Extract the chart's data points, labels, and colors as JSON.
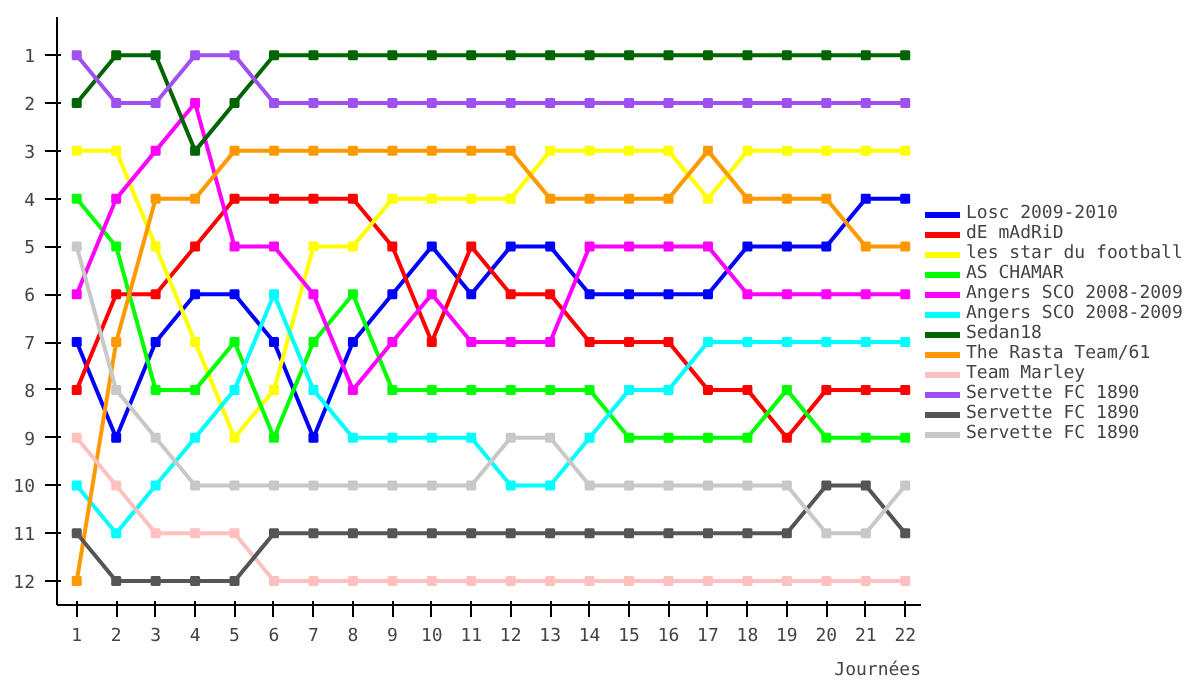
{
  "chart_data": {
    "type": "line",
    "xlabel": "Journées",
    "x": [
      1,
      2,
      3,
      4,
      5,
      6,
      7,
      8,
      9,
      10,
      11,
      12,
      13,
      14,
      15,
      16,
      17,
      18,
      19,
      20,
      21,
      22
    ],
    "xlim": [
      0.5,
      22.4
    ],
    "xticks": [
      1,
      2,
      3,
      4,
      5,
      6,
      7,
      8,
      9,
      10,
      11,
      12,
      13,
      14,
      15,
      16,
      17,
      18,
      19,
      20,
      21,
      22
    ],
    "ylim": [
      12.5,
      0.2
    ],
    "yticks": [
      1,
      2,
      3,
      4,
      5,
      6,
      7,
      8,
      9,
      10,
      11,
      12
    ],
    "grid": false,
    "legend": "right",
    "marker": "square",
    "line_style": "solid",
    "series": [
      {
        "name": "Losc 2009-2010",
        "color": "#0000ff",
        "values": [
          7,
          9,
          7,
          6,
          6,
          7,
          9,
          7,
          6,
          5,
          6,
          5,
          5,
          6,
          6,
          6,
          6,
          5,
          5,
          5,
          4,
          4
        ]
      },
      {
        "name": "dE mAdRiD",
        "color": "#ff0000",
        "values": [
          8,
          6,
          6,
          5,
          4,
          4,
          4,
          4,
          5,
          7,
          5,
          6,
          6,
          7,
          7,
          7,
          8,
          8,
          9,
          8,
          8,
          8
        ]
      },
      {
        "name": "les star du football",
        "color": "#ffff00",
        "values": [
          3,
          3,
          5,
          7,
          9,
          8,
          5,
          5,
          4,
          4,
          4,
          4,
          3,
          3,
          3,
          3,
          4,
          3,
          3,
          3,
          3,
          3
        ]
      },
      {
        "name": "AS CHAMAR",
        "color": "#00ff00",
        "values": [
          4,
          5,
          8,
          8,
          7,
          9,
          7,
          6,
          8,
          8,
          8,
          8,
          8,
          8,
          9,
          9,
          9,
          9,
          8,
          9,
          9,
          9
        ]
      },
      {
        "name": "Angers SCO 2008-2009",
        "color": "#ff00ff",
        "values": [
          6,
          4,
          3,
          2,
          5,
          5,
          6,
          8,
          7,
          6,
          7,
          7,
          7,
          5,
          5,
          5,
          5,
          6,
          6,
          6,
          6,
          6
        ]
      },
      {
        "name": "Angers SCO 2008-2009",
        "color": "#00ffff",
        "values": [
          10,
          11,
          10,
          9,
          8,
          6,
          8,
          9,
          9,
          9,
          9,
          10,
          10,
          9,
          8,
          8,
          7,
          7,
          7,
          7,
          7,
          7
        ]
      },
      {
        "name": "Sedan18",
        "color": "#006400",
        "values": [
          2,
          1,
          1,
          3,
          2,
          1,
          1,
          1,
          1,
          1,
          1,
          1,
          1,
          1,
          1,
          1,
          1,
          1,
          1,
          1,
          1,
          1
        ]
      },
      {
        "name": "The Rasta Team/61",
        "color": "#ff9900",
        "values": [
          12,
          7,
          4,
          4,
          3,
          3,
          3,
          3,
          3,
          3,
          3,
          3,
          4,
          4,
          4,
          4,
          3,
          4,
          4,
          4,
          5,
          5
        ]
      },
      {
        "name": "Team Marley",
        "color": "#ffc0c0",
        "values": [
          9,
          10,
          11,
          11,
          11,
          12,
          12,
          12,
          12,
          12,
          12,
          12,
          12,
          12,
          12,
          12,
          12,
          12,
          12,
          12,
          12,
          12
        ]
      },
      {
        "name": "Servette FC 1890",
        "color": "#a050f0",
        "values": [
          1,
          2,
          2,
          1,
          1,
          2,
          2,
          2,
          2,
          2,
          2,
          2,
          2,
          2,
          2,
          2,
          2,
          2,
          2,
          2,
          2,
          2
        ]
      },
      {
        "name": "Servette FC 1890",
        "color": "#555555",
        "values": [
          11,
          12,
          12,
          12,
          12,
          11,
          11,
          11,
          11,
          11,
          11,
          11,
          11,
          11,
          11,
          11,
          11,
          11,
          11,
          10,
          10,
          11
        ]
      },
      {
        "name": "Servette FC 1890",
        "color": "#c8c8c8",
        "values": [
          5,
          8,
          9,
          10,
          10,
          10,
          10,
          10,
          10,
          10,
          10,
          9,
          9,
          10,
          10,
          10,
          10,
          10,
          10,
          11,
          11,
          10
        ]
      }
    ]
  }
}
